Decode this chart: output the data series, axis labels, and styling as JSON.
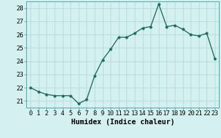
{
  "x": [
    0,
    1,
    2,
    3,
    4,
    5,
    6,
    7,
    8,
    9,
    10,
    11,
    12,
    13,
    14,
    15,
    16,
    17,
    18,
    19,
    20,
    21,
    22,
    23
  ],
  "y": [
    22.0,
    21.7,
    21.5,
    21.4,
    21.4,
    21.4,
    20.8,
    21.1,
    22.9,
    24.1,
    24.9,
    25.8,
    25.8,
    26.1,
    26.5,
    26.6,
    28.3,
    26.6,
    26.7,
    26.4,
    26.0,
    25.9,
    26.1,
    24.2
  ],
  "xlabel": "Humidex (Indice chaleur)",
  "xlim": [
    -0.5,
    23.5
  ],
  "ylim": [
    20.5,
    28.5
  ],
  "yticks": [
    21,
    22,
    23,
    24,
    25,
    26,
    27,
    28
  ],
  "xtick_labels": [
    "0",
    "1",
    "2",
    "3",
    "4",
    "5",
    "6",
    "7",
    "8",
    "9",
    "10",
    "11",
    "12",
    "13",
    "14",
    "15",
    "16",
    "17",
    "18",
    "19",
    "20",
    "21",
    "22",
    "23"
  ],
  "line_color": "#1f6b5c",
  "marker_size": 2.5,
  "bg_color": "#d4f0f0",
  "grid_color": "#b8dede",
  "tick_fontsize": 6.5,
  "label_fontsize": 7.5
}
